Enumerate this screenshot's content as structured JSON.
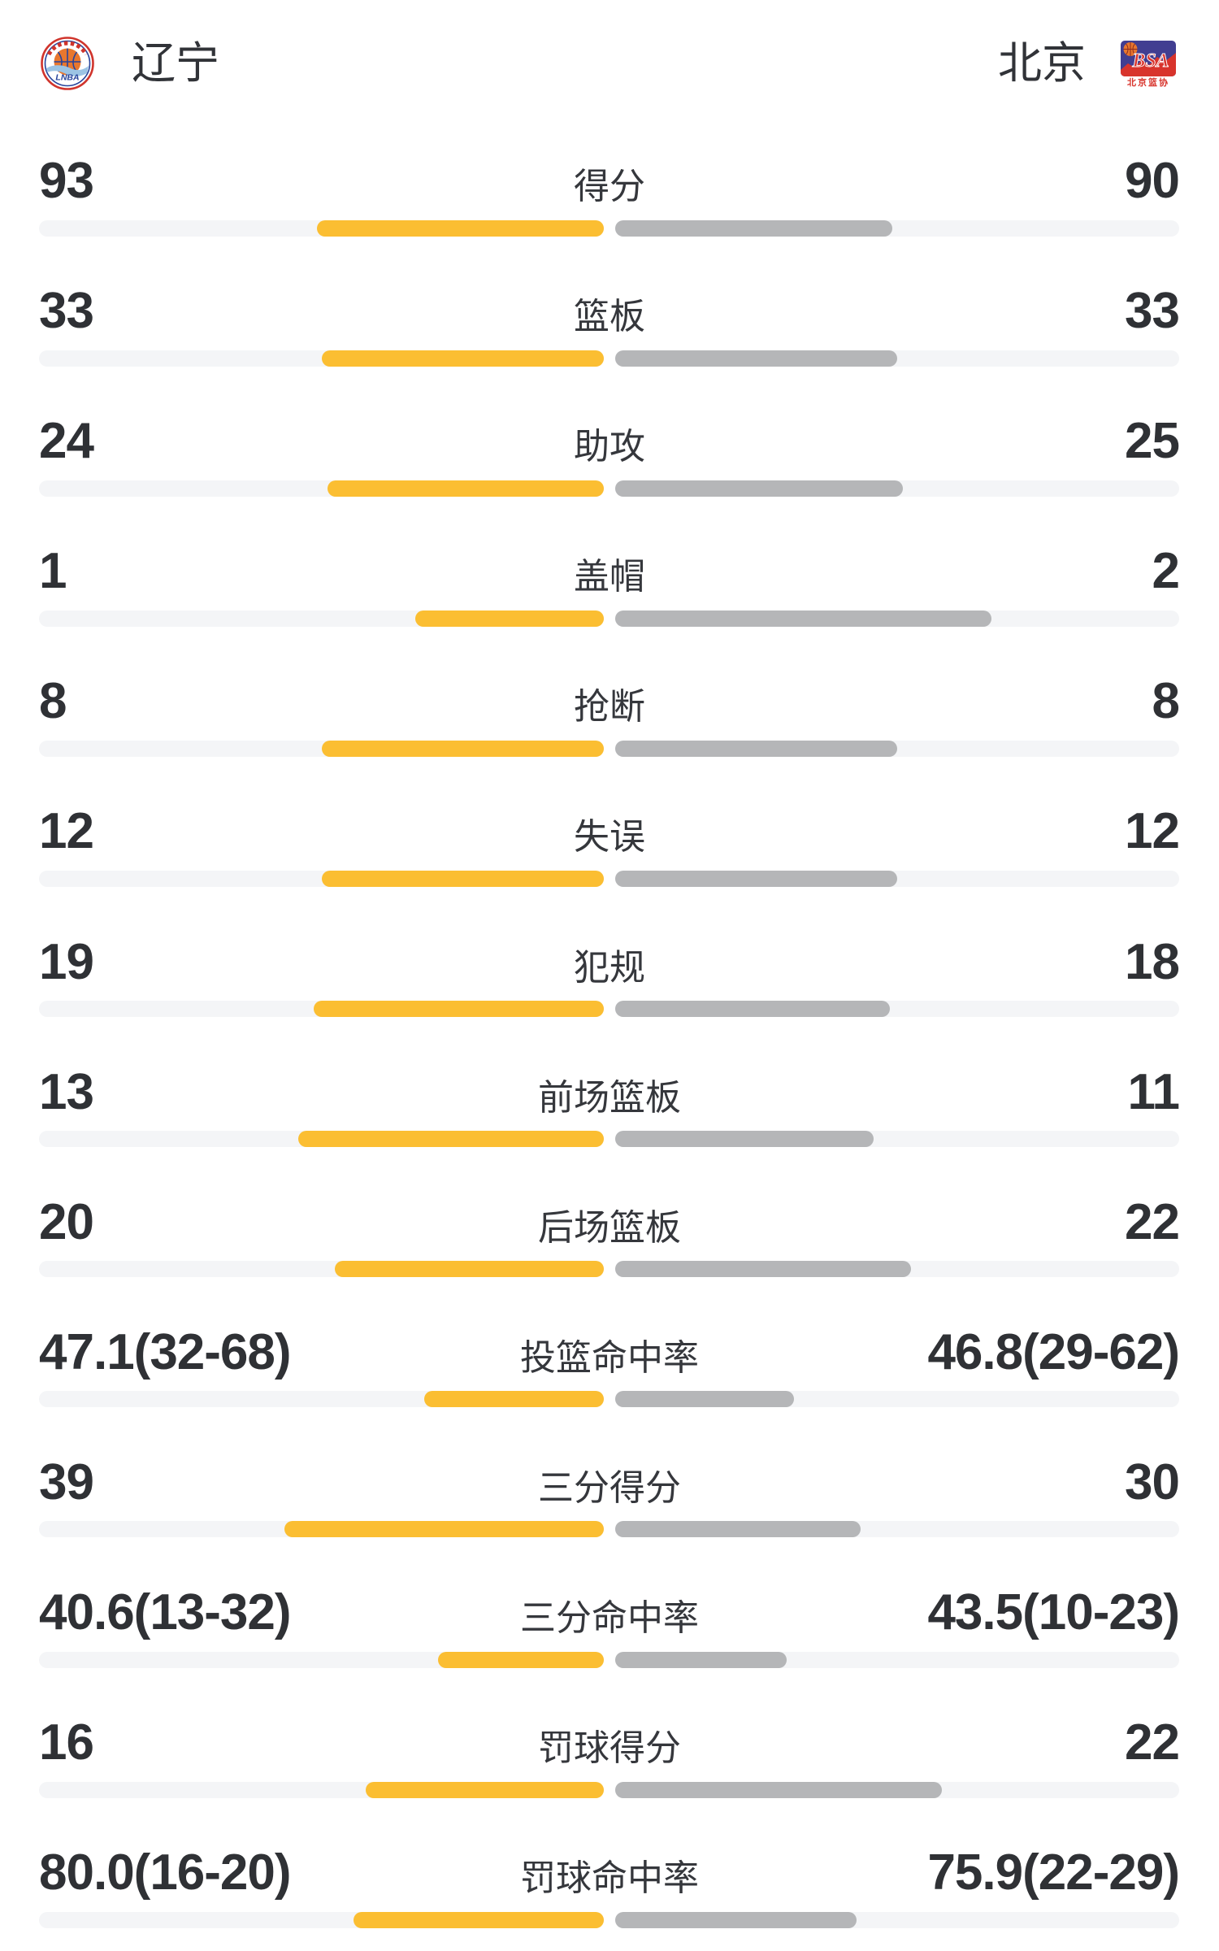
{
  "header": {
    "home": {
      "name": "辽宁",
      "logo": "liaoning-lnba-badge"
    },
    "away": {
      "name": "北京",
      "logo": "beijing-bsa-badge"
    }
  },
  "colors": {
    "home_bar": "#FBBE32",
    "away_bar": "#B5B6B8",
    "track": "#F4F5F7",
    "text": "#2F3135"
  },
  "chart_data": {
    "type": "bar",
    "legend_position": "none",
    "description": "Head-to-head basketball game stats, home (left, yellow) vs away (right, grey); count rows scaled by share of the pair sum, percent rows by shooting percentage",
    "rows": [
      {
        "label": "得分",
        "home_display": "93",
        "away_display": "90",
        "home": 93,
        "away": 90,
        "kind": "count"
      },
      {
        "label": "篮板",
        "home_display": "33",
        "away_display": "33",
        "home": 33,
        "away": 33,
        "kind": "count"
      },
      {
        "label": "助攻",
        "home_display": "24",
        "away_display": "25",
        "home": 24,
        "away": 25,
        "kind": "count"
      },
      {
        "label": "盖帽",
        "home_display": "1",
        "away_display": "2",
        "home": 1,
        "away": 2,
        "kind": "count"
      },
      {
        "label": "抢断",
        "home_display": "8",
        "away_display": "8",
        "home": 8,
        "away": 8,
        "kind": "count"
      },
      {
        "label": "失误",
        "home_display": "12",
        "away_display": "12",
        "home": 12,
        "away": 12,
        "kind": "count"
      },
      {
        "label": "犯规",
        "home_display": "19",
        "away_display": "18",
        "home": 19,
        "away": 18,
        "kind": "count"
      },
      {
        "label": "前场篮板",
        "home_display": "13",
        "away_display": "11",
        "home": 13,
        "away": 11,
        "kind": "count"
      },
      {
        "label": "后场篮板",
        "home_display": "20",
        "away_display": "22",
        "home": 20,
        "away": 22,
        "kind": "count"
      },
      {
        "label": "投篮命中率",
        "home_display": "47.1(32-68)",
        "away_display": "46.8(29-62)",
        "home": 47.1,
        "away": 46.8,
        "kind": "percent"
      },
      {
        "label": "三分得分",
        "home_display": "39",
        "away_display": "30",
        "home": 39,
        "away": 30,
        "kind": "count"
      },
      {
        "label": "三分命中率",
        "home_display": "40.6(13-32)",
        "away_display": "43.5(10-23)",
        "home": 40.6,
        "away": 43.5,
        "kind": "percent"
      },
      {
        "label": "罚球得分",
        "home_display": "16",
        "away_display": "22",
        "home": 16,
        "away": 22,
        "kind": "count"
      },
      {
        "label": "罚球命中率",
        "home_display": "80.0(16-20)",
        "away_display": "75.9(22-29)",
        "home": 80.0,
        "away": 75.9,
        "kind": "percent"
      }
    ]
  }
}
